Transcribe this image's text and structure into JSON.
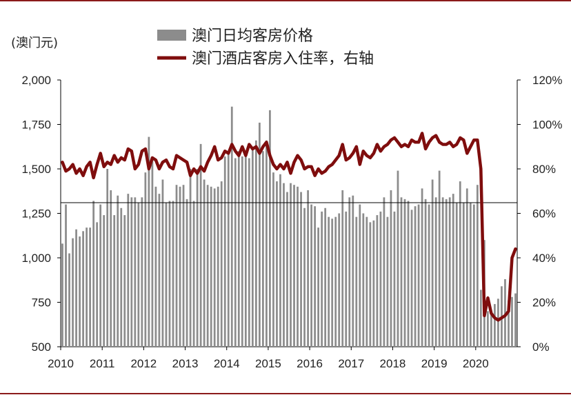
{
  "chart_data": {
    "type": "bar+line",
    "unit_label": "(澳门元)",
    "legend": [
      "澳门日均客房价格",
      "澳门酒店客房入住率，右轴"
    ],
    "x_ticks": [
      "2010",
      "2011",
      "2012",
      "2013",
      "2014",
      "2015",
      "2016",
      "2017",
      "2018",
      "2019",
      "2020"
    ],
    "y_left": {
      "min": 500,
      "max": 2000,
      "ticks": [
        "500",
        "750",
        "1,000",
        "1,250",
        "1,500",
        "1,750",
        "2,000"
      ]
    },
    "y_right": {
      "min": 0,
      "max": 120,
      "ticks": [
        "0%",
        "20%",
        "40%",
        "60%",
        "80%",
        "100%",
        "120%"
      ]
    },
    "reference_line": 1310,
    "start": "2010-01",
    "series": [
      {
        "name": "澳门日均客房价格",
        "axis": "left",
        "color": "#8c8c8c",
        "values": [
          1080,
          1300,
          1025,
          1110,
          1160,
          1120,
          1150,
          1170,
          1170,
          1320,
          1200,
          1300,
          1240,
          1500,
          1380,
          1240,
          1350,
          1280,
          1240,
          1360,
          1340,
          1340,
          1310,
          1340,
          1480,
          1680,
          1560,
          1400,
          1360,
          1440,
          1310,
          1320,
          1320,
          1410,
          1400,
          1410,
          1330,
          1500,
          1320,
          1500,
          1640,
          1440,
          1410,
          1400,
          1390,
          1400,
          1430,
          1570,
          1590,
          1850,
          1560,
          1600,
          1570,
          1580,
          1560,
          1610,
          1660,
          1760,
          1600,
          1660,
          1830,
          1480,
          1430,
          1470,
          1420,
          1370,
          1420,
          1410,
          1400,
          1370,
          1280,
          1380,
          1300,
          1290,
          1170,
          1260,
          1280,
          1230,
          1220,
          1230,
          1250,
          1380,
          1260,
          1340,
          1350,
          1230,
          1300,
          1250,
          1230,
          1200,
          1210,
          1240,
          1260,
          1340,
          1230,
          1380,
          1260,
          1490,
          1340,
          1330,
          1320,
          1270,
          1290,
          1300,
          1390,
          1330,
          1300,
          1440,
          1340,
          1490,
          1340,
          1330,
          1340,
          1360,
          1310,
          1430,
          1310,
          1390,
          1310,
          1300,
          1410,
          820,
          1100,
          700,
          690,
          740,
          770,
          840,
          880,
          760,
          780,
          800
        ]
      },
      {
        "name": "澳门酒店客房入住率，右轴",
        "axis": "right",
        "color": "#7f0d0d",
        "values": [
          83,
          79,
          80,
          82,
          78,
          80,
          77,
          81,
          83,
          76,
          82,
          87,
          81,
          83,
          82,
          86,
          83,
          85,
          84,
          89,
          88,
          80,
          82,
          88,
          89,
          80,
          85,
          84,
          80,
          83,
          84,
          81,
          80,
          86,
          85,
          84,
          83,
          77,
          80,
          78,
          81,
          79,
          83,
          86,
          90,
          84,
          85,
          88,
          87,
          91,
          88,
          86,
          90,
          86,
          91,
          89,
          90,
          87,
          90,
          92,
          86,
          82,
          80,
          82,
          80,
          83,
          78,
          83,
          86,
          84,
          80,
          81,
          81,
          77,
          80,
          78,
          79,
          81,
          82,
          84,
          86,
          91,
          84,
          85,
          87,
          90,
          82,
          88,
          86,
          85,
          87,
          91,
          88,
          90,
          91,
          93,
          94,
          92,
          90,
          91,
          90,
          93,
          92,
          92,
          96,
          89,
          92,
          94,
          95,
          92,
          91,
          91,
          92,
          90,
          91,
          94,
          93,
          87,
          90,
          93,
          93,
          80,
          14,
          22,
          15,
          13,
          12,
          13,
          14,
          16,
          40,
          44
        ]
      }
    ]
  }
}
